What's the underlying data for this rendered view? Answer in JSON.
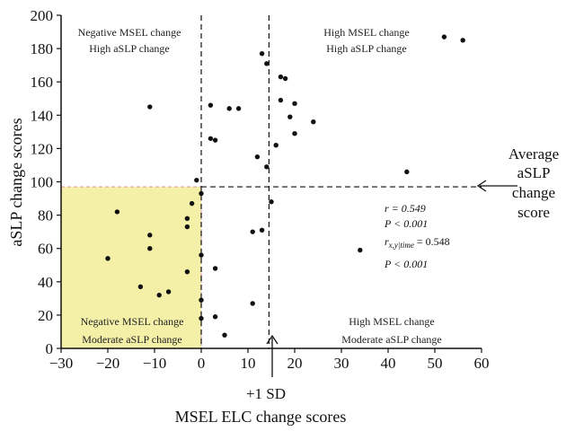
{
  "chart_data": {
    "type": "scatter",
    "xlabel": "MSEL ELC change scores",
    "ylabel": "aSLP change scores",
    "xlim": [
      -30,
      60
    ],
    "ylim": [
      0,
      200
    ],
    "xticks": [
      "-30",
      "-20",
      "-10",
      "0",
      "10",
      "20",
      "30",
      "40",
      "50",
      "60"
    ],
    "yticks": [
      "0",
      "20",
      "40",
      "60",
      "80",
      "100",
      "120",
      "140",
      "160",
      "180",
      "200"
    ],
    "grid": false,
    "reference_lines": {
      "x0": 0,
      "x_sd": 14.5,
      "y_avg": 97
    },
    "quadrant_labels": {
      "top_left": [
        "Negative MSEL change",
        "High aSLP change"
      ],
      "top_right": [
        "High MSEL change",
        "High aSLP change"
      ],
      "bottom_left": [
        "Negative MSEL change",
        "Moderate aSLP change"
      ],
      "bottom_right": [
        "High MSEL change",
        "Moderate aSLP change"
      ]
    },
    "annotations": {
      "sd_label": "+1 SD",
      "avg_label": [
        "Average",
        "aSLP",
        "change",
        "score"
      ]
    },
    "stats": {
      "r": "r = 0.549",
      "p1": "P < 0.001",
      "r_partial": "r",
      "r_partial_sub": "x,y|time",
      "r_partial_val": " = 0.548",
      "p2": "P < 0.001"
    },
    "colors": {
      "highlight_fill": "#f4f0a8",
      "highlight_border": "#e0a0a0",
      "point": "#111111"
    },
    "points": [
      [
        -11,
        145
      ],
      [
        -20,
        54
      ],
      [
        -18,
        82
      ],
      [
        -13,
        37
      ],
      [
        -11,
        68
      ],
      [
        -11,
        60
      ],
      [
        -9,
        32
      ],
      [
        -7,
        34
      ],
      [
        -3,
        78
      ],
      [
        -3,
        73
      ],
      [
        -3,
        46
      ],
      [
        -2,
        87
      ],
      [
        -1,
        101
      ],
      [
        0,
        93
      ],
      [
        0,
        56
      ],
      [
        0,
        29
      ],
      [
        0,
        18
      ],
      [
        2,
        146
      ],
      [
        2,
        126
      ],
      [
        3,
        125
      ],
      [
        3,
        48
      ],
      [
        3,
        19
      ],
      [
        5,
        8
      ],
      [
        6,
        144
      ],
      [
        8,
        144
      ],
      [
        11,
        70
      ],
      [
        11,
        27
      ],
      [
        12,
        115
      ],
      [
        13,
        177
      ],
      [
        13,
        71
      ],
      [
        14,
        171
      ],
      [
        14,
        109
      ],
      [
        15,
        88
      ],
      [
        16,
        122
      ],
      [
        17,
        163
      ],
      [
        17,
        149
      ],
      [
        18,
        162
      ],
      [
        19,
        139
      ],
      [
        20,
        147
      ],
      [
        20,
        129
      ],
      [
        24,
        136
      ],
      [
        34,
        59
      ],
      [
        44,
        106
      ],
      [
        52,
        187
      ],
      [
        56,
        185
      ]
    ]
  }
}
